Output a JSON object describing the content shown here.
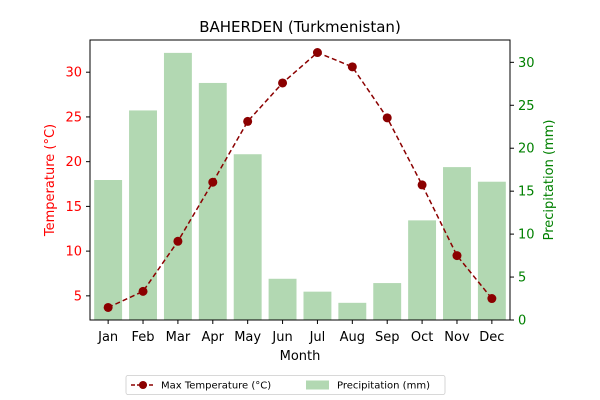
{
  "chart_data": {
    "type": "bar+line",
    "title": "BAHERDEN (Turkmenistan)",
    "xlabel": "Month",
    "categories": [
      "Jan",
      "Feb",
      "Mar",
      "Apr",
      "May",
      "Jun",
      "Jul",
      "Aug",
      "Sep",
      "Oct",
      "Nov",
      "Dec"
    ],
    "series": [
      {
        "name": "Max Temperature (°C)",
        "type": "line",
        "axis": "left",
        "values": [
          3.7,
          5.5,
          11.1,
          17.7,
          24.5,
          28.8,
          32.2,
          30.6,
          24.9,
          17.4,
          9.5,
          4.7
        ]
      },
      {
        "name": "Precipitation (mm)",
        "type": "bar",
        "axis": "right",
        "values": [
          16.3,
          24.4,
          31.1,
          27.6,
          19.3,
          4.8,
          3.3,
          2.0,
          4.3,
          11.6,
          17.8,
          16.1
        ]
      }
    ],
    "y_left": {
      "label": "Temperature (°C)",
      "ticks": [
        5,
        10,
        15,
        20,
        25,
        30
      ],
      "lim": [
        2.3,
        33.6
      ],
      "color": "#ff0000"
    },
    "y_right": {
      "label": "Precipitation (mm)",
      "ticks": [
        0,
        5,
        10,
        15,
        20,
        25,
        30
      ],
      "lim": [
        0,
        32.6
      ],
      "color": "#008000"
    },
    "legend": "bottom-center",
    "grid": false,
    "colors": {
      "line": "#8b0000",
      "bar": "#b2d8b2"
    }
  }
}
